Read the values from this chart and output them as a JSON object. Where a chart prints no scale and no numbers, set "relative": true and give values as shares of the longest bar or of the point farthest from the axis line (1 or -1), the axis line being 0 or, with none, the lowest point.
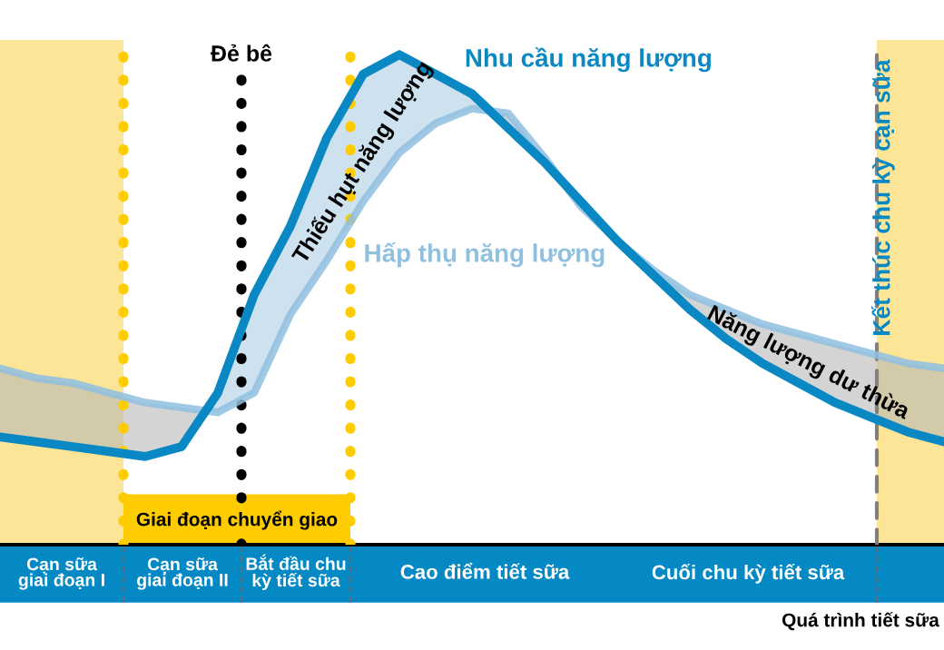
{
  "chart_data": {
    "type": "line",
    "relative": true,
    "xlabel": "Quá trình tiết sữa",
    "categories": [
      null,
      null,
      null,
      null,
      null,
      null,
      null,
      null,
      null,
      null,
      null,
      null,
      null,
      null,
      null,
      null,
      null,
      null,
      null,
      null,
      null,
      null,
      null,
      null,
      null,
      null,
      null
    ],
    "series": [
      {
        "name": "Nhu cầu năng lượng",
        "color": "#0a88c4",
        "values": [
          0.22,
          0.21,
          0.2,
          0.19,
          0.18,
          0.2,
          0.31,
          0.51,
          0.65,
          0.83,
          0.96,
          1.0,
          0.96,
          0.92,
          0.85,
          0.78,
          0.7,
          0.62,
          0.55,
          0.48,
          0.42,
          0.37,
          0.33,
          0.29,
          0.26,
          0.23,
          0.21
        ]
      },
      {
        "name": "Hấp thụ năng lượng",
        "color": "#8fc0e0",
        "values": [
          0.36,
          0.34,
          0.33,
          0.31,
          0.29,
          0.28,
          0.27,
          0.31,
          0.47,
          0.58,
          0.7,
          0.8,
          0.86,
          0.89,
          0.88,
          0.79,
          0.69,
          0.62,
          0.56,
          0.51,
          0.48,
          0.45,
          0.43,
          0.41,
          0.39,
          0.37,
          0.36
        ]
      }
    ],
    "annotations": [
      "Đẻ bê",
      "Kết thúc chu kỳ cạn sữa",
      "Giai đoạn chuyển giao",
      "Cạn sữa\ngiai đoạn I",
      "Cạn sữa\ngiai đoạn II",
      "Bắt đầu chu\nkỳ tiết sữa",
      "Cao điểm tiết sữa",
      "Cuối chu kỳ tiết sữa",
      "Thiếu hụt năng lượng",
      "Năng lượng dư thừa"
    ]
  }
}
